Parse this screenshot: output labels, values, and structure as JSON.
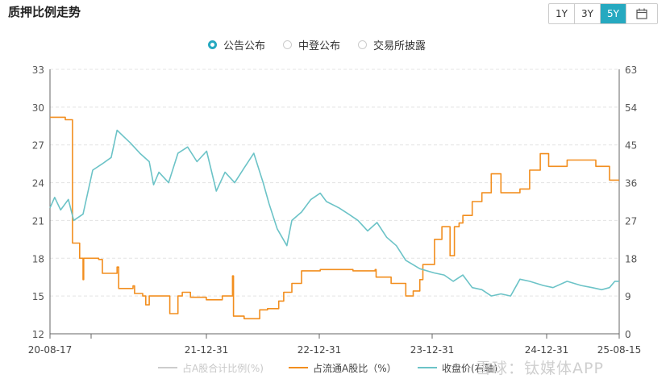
{
  "header": {
    "title": "质押比例走势",
    "range_buttons": [
      "1Y",
      "3Y",
      "5Y"
    ],
    "active_range": "5Y"
  },
  "filters": [
    {
      "label": "公告公布",
      "selected": true
    },
    {
      "label": "中登公布",
      "selected": false
    },
    {
      "label": "交易所披露",
      "selected": false
    }
  ],
  "watermark": "雪球：钛媒体APP",
  "colors": {
    "accent": "#26a9c0",
    "orange": "#f28e1e",
    "teal": "#6cc3c7",
    "gray": "#cccccc"
  },
  "chart_data": {
    "type": "line",
    "x_ticks": [
      "20-08-17",
      "21-12-31",
      "22-12-31",
      "23-12-31",
      "24-12-31",
      "25-08-15"
    ],
    "x_range": [
      "2020-08-17",
      "2025-08-15"
    ],
    "y_left": {
      "ticks": [
        12,
        15,
        18,
        21,
        24,
        27,
        30,
        33
      ],
      "range": [
        12,
        33
      ]
    },
    "y_right": {
      "ticks": [
        0,
        9,
        18,
        27,
        36,
        45,
        54,
        63
      ],
      "range": [
        0,
        63
      ]
    },
    "grid": true,
    "legend_position": "bottom",
    "series": [
      {
        "name": "占A股合计比例(%)",
        "axis": "left",
        "values": []
      },
      {
        "name": "占流通A股比（%）",
        "axis": "left",
        "step": true,
        "values": [
          [
            "2020-08-17",
            29.2
          ],
          [
            "2020-10-01",
            29.2
          ],
          [
            "2020-10-05",
            29.0
          ],
          [
            "2020-10-25",
            29.0
          ],
          [
            "2020-10-28",
            19.2
          ],
          [
            "2020-11-20",
            18.0
          ],
          [
            "2020-12-01",
            16.3
          ],
          [
            "2020-12-03",
            18.0
          ],
          [
            "2021-01-20",
            17.9
          ],
          [
            "2021-02-01",
            16.8
          ],
          [
            "2021-03-15",
            16.8
          ],
          [
            "2021-03-20",
            17.3
          ],
          [
            "2021-03-25",
            15.6
          ],
          [
            "2021-05-10",
            15.8
          ],
          [
            "2021-05-15",
            15.2
          ],
          [
            "2021-06-10",
            15.0
          ],
          [
            "2021-06-20",
            14.3
          ],
          [
            "2021-07-01",
            15.0
          ],
          [
            "2021-09-05",
            13.6
          ],
          [
            "2021-10-01",
            15.0
          ],
          [
            "2021-10-15",
            15.3
          ],
          [
            "2021-11-10",
            14.9
          ],
          [
            "2021-12-31",
            14.7
          ],
          [
            "2022-02-20",
            15.0
          ],
          [
            "2022-03-25",
            16.6
          ],
          [
            "2022-03-28",
            13.4
          ],
          [
            "2022-05-01",
            13.2
          ],
          [
            "2022-06-20",
            13.9
          ],
          [
            "2022-07-15",
            14.0
          ],
          [
            "2022-08-20",
            14.6
          ],
          [
            "2022-09-05",
            15.3
          ],
          [
            "2022-10-01",
            16.0
          ],
          [
            "2022-11-01",
            17.0
          ],
          [
            "2022-12-31",
            17.1
          ],
          [
            "2023-04-15",
            17.0
          ],
          [
            "2023-06-25",
            17.1
          ],
          [
            "2023-06-28",
            16.5
          ],
          [
            "2023-08-15",
            16.0
          ],
          [
            "2023-10-01",
            15.0
          ],
          [
            "2023-10-25",
            15.4
          ],
          [
            "2023-11-15",
            16.3
          ],
          [
            "2023-11-25",
            17.5
          ],
          [
            "2024-01-01",
            19.5
          ],
          [
            "2024-01-25",
            20.5
          ],
          [
            "2024-02-20",
            18.2
          ],
          [
            "2024-03-05",
            20.5
          ],
          [
            "2024-03-20",
            20.8
          ],
          [
            "2024-04-01",
            21.4
          ],
          [
            "2024-05-01",
            22.5
          ],
          [
            "2024-06-01",
            23.2
          ],
          [
            "2024-07-01",
            24.7
          ],
          [
            "2024-08-01",
            23.2
          ],
          [
            "2024-10-01",
            23.5
          ],
          [
            "2024-11-01",
            25.0
          ],
          [
            "2024-12-05",
            26.3
          ],
          [
            "2025-01-01",
            25.3
          ],
          [
            "2025-03-01",
            25.8
          ],
          [
            "2025-06-01",
            25.3
          ],
          [
            "2025-07-15",
            24.2
          ],
          [
            "2025-08-15",
            24.2
          ]
        ]
      },
      {
        "name": "收盘价(右轴)",
        "axis": "right",
        "values": [
          [
            "2020-08-17",
            30.0
          ],
          [
            "2020-09-01",
            32.5
          ],
          [
            "2020-09-20",
            29.5
          ],
          [
            "2020-10-15",
            32.0
          ],
          [
            "2020-11-01",
            27.0
          ],
          [
            "2020-12-01",
            28.5
          ],
          [
            "2021-01-01",
            39.0
          ],
          [
            "2021-02-01",
            40.5
          ],
          [
            "2021-03-01",
            42.0
          ],
          [
            "2021-03-20",
            48.5
          ],
          [
            "2021-04-10",
            47.0
          ],
          [
            "2021-05-01",
            45.5
          ],
          [
            "2021-06-01",
            43.0
          ],
          [
            "2021-07-01",
            41.0
          ],
          [
            "2021-07-15",
            35.5
          ],
          [
            "2021-08-01",
            38.5
          ],
          [
            "2021-09-01",
            36.0
          ],
          [
            "2021-10-01",
            43.0
          ],
          [
            "2021-11-01",
            44.5
          ],
          [
            "2021-12-01",
            41.0
          ],
          [
            "2022-01-01",
            43.5
          ],
          [
            "2022-02-01",
            34.0
          ],
          [
            "2022-03-01",
            38.5
          ],
          [
            "2022-04-01",
            36.0
          ],
          [
            "2022-05-01",
            39.5
          ],
          [
            "2022-06-01",
            43.0
          ],
          [
            "2022-07-01",
            36.0
          ],
          [
            "2022-07-20",
            31.0
          ],
          [
            "2022-08-15",
            25.0
          ],
          [
            "2022-09-15",
            21.0
          ],
          [
            "2022-10-01",
            27.0
          ],
          [
            "2022-11-01",
            29.0
          ],
          [
            "2022-12-01",
            32.0
          ],
          [
            "2022-12-31",
            33.5
          ],
          [
            "2023-01-20",
            31.5
          ],
          [
            "2023-03-01",
            30.0
          ],
          [
            "2023-04-01",
            28.5
          ],
          [
            "2023-05-01",
            27.0
          ],
          [
            "2023-06-01",
            24.5
          ],
          [
            "2023-07-01",
            26.5
          ],
          [
            "2023-08-01",
            23.0
          ],
          [
            "2023-09-01",
            21.0
          ],
          [
            "2023-10-01",
            17.5
          ],
          [
            "2023-11-15",
            15.5
          ],
          [
            "2023-12-31",
            14.5
          ],
          [
            "2024-02-01",
            14.0
          ],
          [
            "2024-03-01",
            12.5
          ],
          [
            "2024-04-01",
            14.0
          ],
          [
            "2024-05-01",
            11.0
          ],
          [
            "2024-06-01",
            10.5
          ],
          [
            "2024-07-01",
            9.0
          ],
          [
            "2024-08-01",
            9.5
          ],
          [
            "2024-09-01",
            9.0
          ],
          [
            "2024-10-01",
            13.0
          ],
          [
            "2024-11-01",
            12.5
          ],
          [
            "2024-12-15",
            11.5
          ],
          [
            "2025-01-15",
            11.0
          ],
          [
            "2025-03-01",
            12.5
          ],
          [
            "2025-04-15",
            11.5
          ],
          [
            "2025-05-20",
            11.0
          ],
          [
            "2025-06-20",
            10.5
          ],
          [
            "2025-07-15",
            11.0
          ],
          [
            "2025-08-01",
            12.5
          ],
          [
            "2025-08-15",
            12.5
          ]
        ]
      }
    ]
  }
}
